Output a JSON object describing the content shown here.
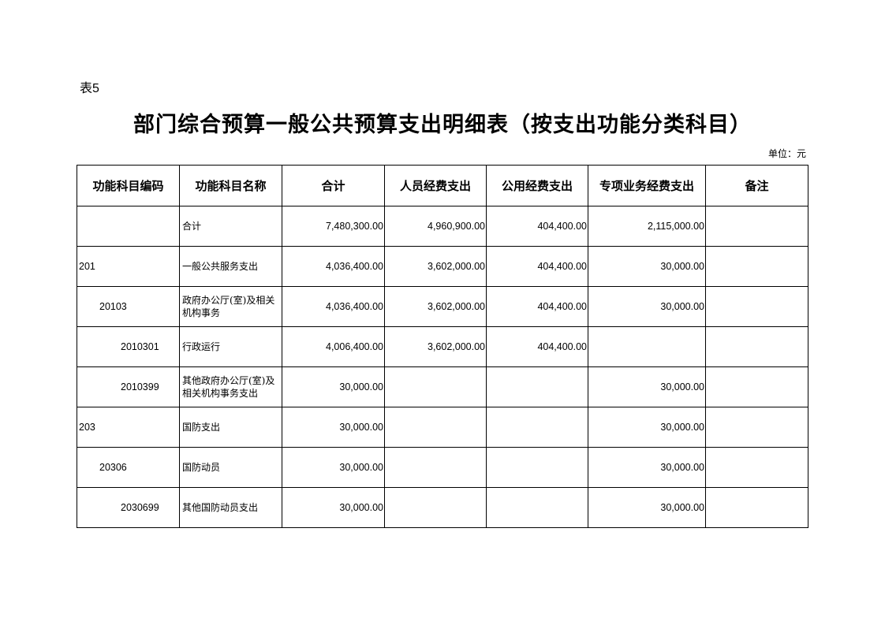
{
  "table_label": "表5",
  "title": "部门综合预算一般公共预算支出明细表（按支出功能分类科目）",
  "unit": "单位：元",
  "columns": [
    "功能科目编码",
    "功能科目名称",
    "合计",
    "人员经费支出",
    "公用经费支出",
    "专项业务经费支出",
    "备注"
  ],
  "rows": [
    {
      "code": "",
      "level": 0,
      "name": "合计",
      "total": "7,480,300.00",
      "personnel": "4,960,900.00",
      "public": "404,400.00",
      "special": "2,115,000.00",
      "note": ""
    },
    {
      "code": "201",
      "level": 0,
      "name": "一般公共服务支出",
      "total": "4,036,400.00",
      "personnel": "3,602,000.00",
      "public": "404,400.00",
      "special": "30,000.00",
      "note": ""
    },
    {
      "code": "20103",
      "level": 1,
      "name": "政府办公厅(室)及相关机构事务",
      "total": "4,036,400.00",
      "personnel": "3,602,000.00",
      "public": "404,400.00",
      "special": "30,000.00",
      "note": ""
    },
    {
      "code": "2010301",
      "level": 2,
      "name": "行政运行",
      "total": "4,006,400.00",
      "personnel": "3,602,000.00",
      "public": "404,400.00",
      "special": "",
      "note": ""
    },
    {
      "code": "2010399",
      "level": 2,
      "name": "其他政府办公厅(室)及相关机构事务支出",
      "total": "30,000.00",
      "personnel": "",
      "public": "",
      "special": "30,000.00",
      "note": ""
    },
    {
      "code": "203",
      "level": 0,
      "name": "国防支出",
      "total": "30,000.00",
      "personnel": "",
      "public": "",
      "special": "30,000.00",
      "note": ""
    },
    {
      "code": "20306",
      "level": 1,
      "name": "国防动员",
      "total": "30,000.00",
      "personnel": "",
      "public": "",
      "special": "30,000.00",
      "note": ""
    },
    {
      "code": "2030699",
      "level": 2,
      "name": "其他国防动员支出",
      "total": "30,000.00",
      "personnel": "",
      "public": "",
      "special": "30,000.00",
      "note": ""
    }
  ]
}
